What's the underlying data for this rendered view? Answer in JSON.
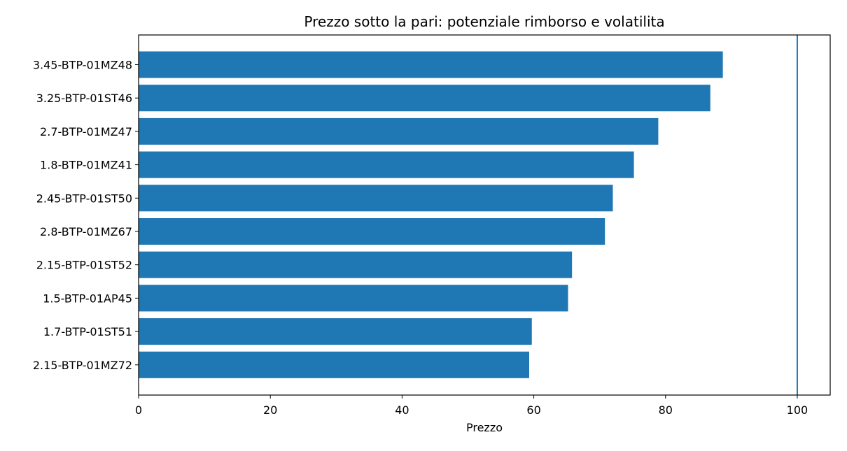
{
  "chart_data": {
    "type": "bar",
    "orientation": "horizontal",
    "title": "Prezzo sotto la pari: potenziale rimborso e volatilita",
    "xlabel": "Prezzo",
    "ylabel": "",
    "xlim": [
      0,
      105
    ],
    "xticks": [
      0,
      20,
      40,
      60,
      80,
      100
    ],
    "grid": false,
    "bar_color": "#1f77b4",
    "reference_line": {
      "x": 100,
      "color": "#1f77b4"
    },
    "categories": [
      "3.45-BTP-01MZ48",
      "3.25-BTP-01ST46",
      "2.7-BTP-01MZ47",
      "1.8-BTP-01MZ41",
      "2.45-BTP-01ST50",
      "2.8-BTP-01MZ67",
      "2.15-BTP-01ST52",
      "1.5-BTP-01AP45",
      "1.7-BTP-01ST51",
      "2.15-BTP-01MZ72"
    ],
    "values": [
      88.7,
      86.8,
      78.9,
      75.2,
      72.0,
      70.8,
      65.8,
      65.2,
      59.7,
      59.3
    ]
  }
}
